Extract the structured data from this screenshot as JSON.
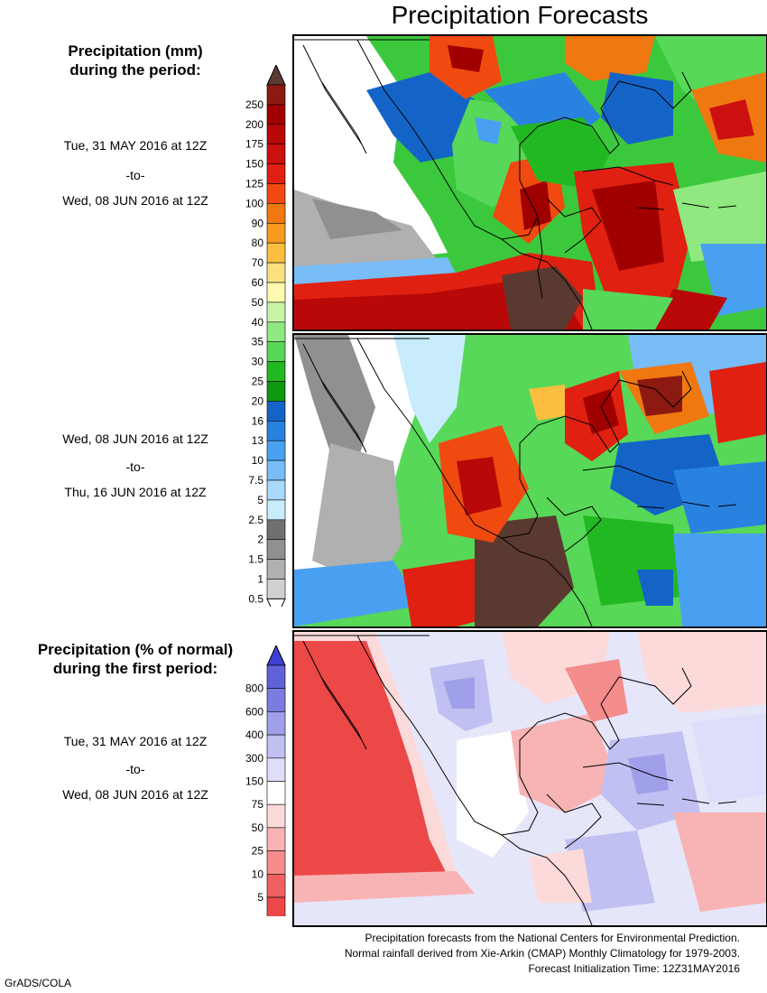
{
  "title": "Precipitation Forecasts",
  "left": {
    "mm_heading": [
      "Precipitation (mm)",
      "during the period:"
    ],
    "pct_heading": [
      "Precipitation (% of normal)",
      "during the first period:"
    ],
    "period1": [
      "Tue, 31 MAY 2016 at 12Z",
      "-to-",
      "Wed, 08 JUN 2016 at 12Z"
    ],
    "period2": [
      "Wed, 08 JUN 2016 at 12Z",
      "-to-",
      "Thu, 16 JUN 2016 at 12Z"
    ],
    "period3": [
      "Tue, 31 MAY 2016 at 12Z",
      "-to-",
      "Wed, 08 JUN 2016 at 12Z"
    ]
  },
  "mm_scale": {
    "labels": [
      "250",
      "200",
      "175",
      "150",
      "125",
      "100",
      "90",
      "80",
      "70",
      "60",
      "50",
      "40",
      "35",
      "30",
      "25",
      "20",
      "16",
      "13",
      "10",
      "7.5",
      "5",
      "2.5",
      "2",
      "1.5",
      "1",
      "0.5"
    ],
    "colors": [
      "#8c1a10",
      "#a00000",
      "#b80808",
      "#cc1010",
      "#e02010",
      "#f04a10",
      "#f07810",
      "#f89a20",
      "#fbbe40",
      "#fbe080",
      "#fdfab0",
      "#c8f4a8",
      "#90e880",
      "#58d858",
      "#22b822",
      "#109810",
      "#1464c8",
      "#2a82e0",
      "#4aa0f0",
      "#78bcf8",
      "#a8d8fc",
      "#c8ecfc",
      "#707070",
      "#909090",
      "#b0b0b0",
      "#d0d0d0"
    ],
    "top_arrow_color": "#5a3a30",
    "bottom_arrow_color": "#ffffff"
  },
  "pct_scale": {
    "labels": [
      "800",
      "600",
      "400",
      "300",
      "150",
      "75",
      "50",
      "25",
      "10",
      "5"
    ],
    "colors": [
      "#6060d8",
      "#7c7ce0",
      "#a0a0ea",
      "#c0c0f2",
      "#dedefa",
      "#ffffff",
      "#fcdada",
      "#f8b4b4",
      "#f48c8c",
      "#f06060",
      "#ec4848"
    ],
    "top_arrow_color": "#4040d0",
    "bottom_arrow_color": "#e83030"
  },
  "footer": [
    "Precipitation forecasts from the National Centers for Environmental Prediction.",
    "Normal rainfall derived from Xie-Arkin (CMAP) Monthly Climatology for 1979-2003.",
    "Forecast Initialization Time: 12Z31MAY2016"
  ],
  "credit": "GrADS/COLA"
}
